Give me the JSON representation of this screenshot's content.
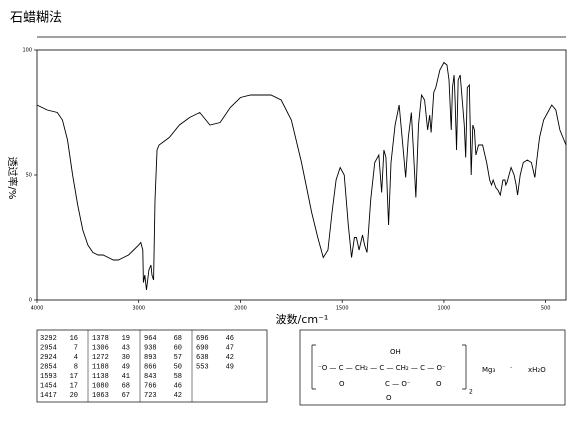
{
  "chart_data": {
    "type": "line",
    "title": "石蜡糊法",
    "xlabel": "波数/cm⁻¹",
    "ylabel": "透过率/%",
    "xlim": [
      4000,
      400
    ],
    "xscale_change": 2000,
    "xticks": [
      4000,
      3000,
      2000,
      1500,
      1000,
      500
    ],
    "ylim": [
      0,
      100
    ],
    "yticks": [
      0,
      50,
      100
    ],
    "color": "#000000",
    "x": [
      4000,
      3950,
      3900,
      3800,
      3750,
      3700,
      3650,
      3600,
      3550,
      3500,
      3450,
      3400,
      3350,
      3300,
      3250,
      3200,
      3150,
      3100,
      3050,
      3000,
      2980,
      2960,
      2954,
      2940,
      2924,
      2900,
      2880,
      2870,
      2854,
      2840,
      2820,
      2800,
      2700,
      2600,
      2500,
      2400,
      2300,
      2200,
      2100,
      2000,
      1950,
      1900,
      1850,
      1800,
      1750,
      1700,
      1650,
      1620,
      1593,
      1570,
      1550,
      1530,
      1510,
      1490,
      1470,
      1454,
      1440,
      1430,
      1417,
      1400,
      1390,
      1378,
      1360,
      1340,
      1320,
      1306,
      1295,
      1285,
      1272,
      1260,
      1240,
      1220,
      1200,
      1188,
      1175,
      1160,
      1150,
      1138,
      1125,
      1110,
      1095,
      1080,
      1070,
      1063,
      1050,
      1040,
      1020,
      1000,
      985,
      975,
      964,
      958,
      950,
      945,
      938,
      930,
      920,
      910,
      900,
      893,
      885,
      875,
      866,
      858,
      850,
      843,
      830,
      810,
      790,
      775,
      766,
      758,
      745,
      735,
      723,
      710,
      700,
      696,
      690,
      680,
      670,
      655,
      645,
      638,
      625,
      610,
      590,
      570,
      553,
      545,
      530,
      510,
      490,
      470,
      450,
      430,
      410,
      400
    ],
    "values": [
      78,
      77,
      76,
      75,
      72,
      64,
      50,
      38,
      28,
      22,
      19,
      18,
      18,
      17,
      16,
      16,
      17,
      18,
      20,
      22,
      23,
      20,
      7,
      10,
      4,
      12,
      14,
      10,
      8,
      40,
      60,
      62,
      65,
      70,
      73,
      75,
      70,
      71,
      77,
      81,
      82,
      82,
      82,
      80,
      72,
      55,
      35,
      25,
      17,
      20,
      35,
      48,
      53,
      50,
      30,
      17,
      25,
      25,
      20,
      26,
      22,
      19,
      40,
      55,
      58,
      43,
      60,
      57,
      30,
      55,
      70,
      78,
      60,
      49,
      65,
      75,
      60,
      41,
      70,
      82,
      80,
      68,
      74,
      67,
      83,
      85,
      92,
      95,
      94,
      88,
      68,
      85,
      90,
      80,
      60,
      88,
      90,
      80,
      70,
      57,
      85,
      86,
      50,
      70,
      68,
      58,
      62,
      62,
      55,
      48,
      46,
      48,
      45,
      44,
      42,
      48,
      48,
      46,
      47,
      50,
      53,
      50,
      46,
      42,
      50,
      55,
      56,
      55,
      49,
      55,
      65,
      72,
      75,
      78,
      76,
      68,
      64,
      62
    ]
  },
  "peak_table": [
    [
      [
        "3292",
        "16"
      ],
      [
        "2954",
        "7"
      ],
      [
        "2924",
        "4"
      ],
      [
        "2854",
        "8"
      ],
      [
        "1593",
        "17"
      ],
      [
        "1454",
        "17"
      ],
      [
        "1417",
        "20"
      ]
    ],
    [
      [
        "1378",
        "19"
      ],
      [
        "1306",
        "43"
      ],
      [
        "1272",
        "30"
      ],
      [
        "1188",
        "49"
      ],
      [
        "1138",
        "41"
      ],
      [
        "1080",
        "68"
      ],
      [
        "1063",
        "67"
      ]
    ],
    [
      [
        "964",
        "68"
      ],
      [
        "938",
        "60"
      ],
      [
        "893",
        "57"
      ],
      [
        "866",
        "50"
      ],
      [
        "843",
        "58"
      ],
      [
        "766",
        "46"
      ],
      [
        "723",
        "42"
      ]
    ],
    [
      [
        "696",
        "46"
      ],
      [
        "690",
        "47"
      ],
      [
        "638",
        "42"
      ],
      [
        "553",
        "49"
      ]
    ]
  ],
  "structure": {
    "oh": "OH",
    "chain": "⁻O — C — CH₂ — C — CH₂ — C — O⁻",
    "o_left": "O",
    "center": "C — O⁻",
    "o_center": "O",
    "o_right": "O",
    "count": "2",
    "metal": "Mg₃",
    "dot": "·",
    "water": "xH₂O"
  }
}
